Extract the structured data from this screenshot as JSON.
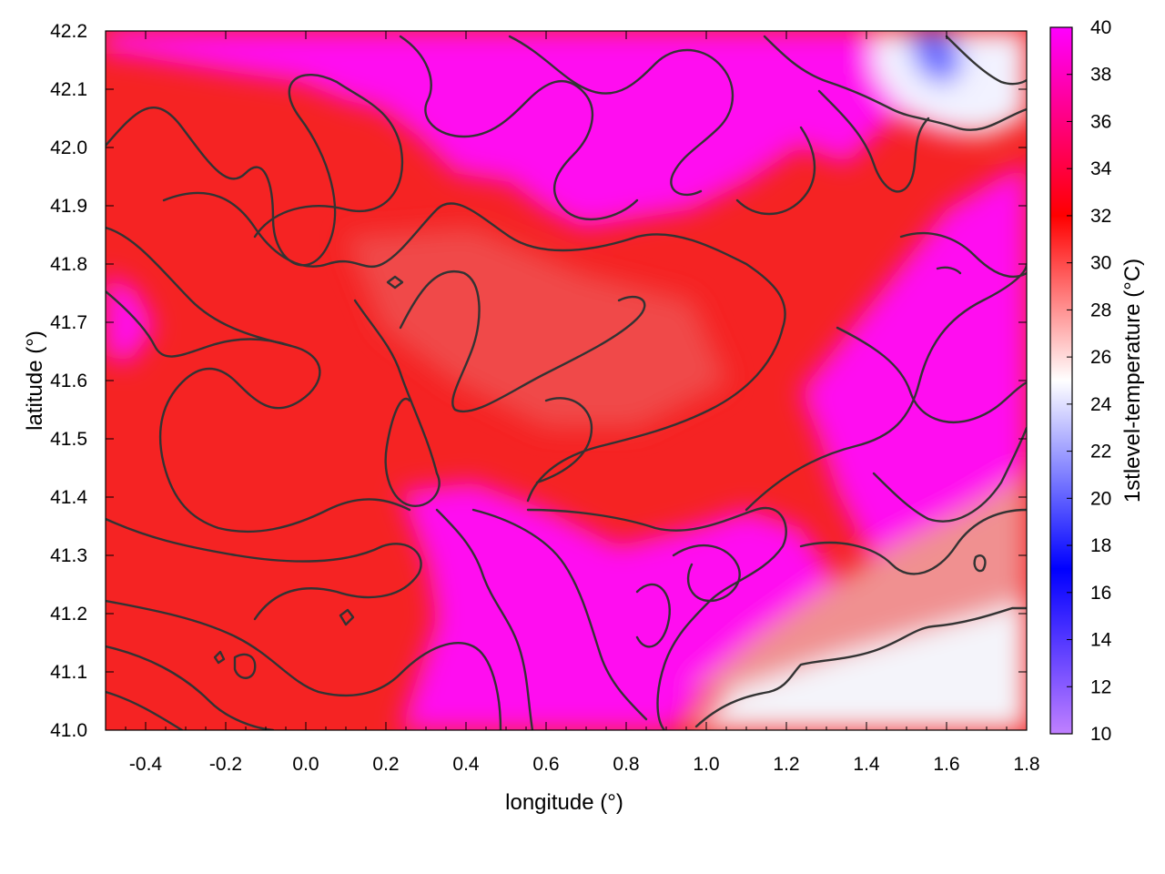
{
  "chart_data": {
    "type": "heatmap",
    "xlabel": "longitude (°)",
    "ylabel": "latitude (°)",
    "colorbar_label": "1stlevel-temperature (°C)",
    "xlim": [
      -0.5,
      1.8
    ],
    "ylim": [
      41.0,
      42.2
    ],
    "zlim": [
      10,
      40
    ],
    "x_ticks": [
      "-0.4",
      "-0.2",
      "0.0",
      "0.2",
      "0.4",
      "0.6",
      "0.8",
      "1.0",
      "1.2",
      "1.4",
      "1.6",
      "1.8"
    ],
    "x_tick_values": [
      -0.4,
      -0.2,
      0.0,
      0.2,
      0.4,
      0.6,
      0.8,
      1.0,
      1.2,
      1.4,
      1.6,
      1.8
    ],
    "y_ticks": [
      "41.0",
      "41.1",
      "41.2",
      "41.3",
      "41.4",
      "41.5",
      "41.6",
      "41.7",
      "41.8",
      "41.9",
      "42.0",
      "42.1",
      "42.2"
    ],
    "y_tick_values": [
      41.0,
      41.1,
      41.2,
      41.3,
      41.4,
      41.5,
      41.6,
      41.7,
      41.8,
      41.9,
      42.0,
      42.1,
      42.2
    ],
    "colorbar_ticks": [
      "10",
      "12",
      "14",
      "16",
      "18",
      "20",
      "22",
      "24",
      "26",
      "28",
      "30",
      "32",
      "34",
      "36",
      "38",
      "40"
    ],
    "colorbar_tick_values": [
      10,
      12,
      14,
      16,
      18,
      20,
      22,
      24,
      26,
      28,
      30,
      32,
      34,
      36,
      38,
      40
    ],
    "colormap": [
      {
        "value": 10,
        "color": "#c080ff"
      },
      {
        "value": 17,
        "color": "#0000ff"
      },
      {
        "value": 25,
        "color": "#ffffff"
      },
      {
        "value": 32,
        "color": "#ff0000"
      },
      {
        "value": 40,
        "color": "#ff00ff"
      }
    ],
    "grid": false,
    "contours": true,
    "contour_color": "#333333",
    "field_summary": [
      {
        "region": "most of the domain (west and centre)",
        "approx_value": 32
      },
      {
        "region": "north, east and river valleys",
        "approx_value": 39
      },
      {
        "region": "far north-east corner",
        "approx_value": 20
      },
      {
        "region": "south-east sea area",
        "approx_value": 25
      }
    ]
  }
}
